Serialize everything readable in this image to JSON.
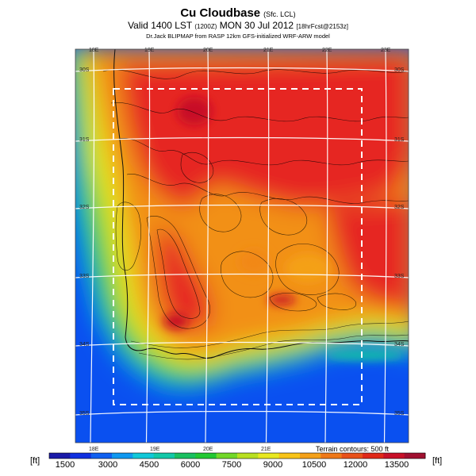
{
  "header": {
    "title": "Cu Cloudbase",
    "title_suffix": "(Sfc. LCL)",
    "valid_prefix": "Valid 1400 LST",
    "valid_code": "(1200Z)",
    "valid_date": "MON 30 Jul 2012",
    "valid_suffix": "[18hrFcst@2153z]",
    "credit": "Dr.Jack BLIPMAP from RASP 12km GFS-initialized WRF-ARW model"
  },
  "map": {
    "lon_labels_top": [
      "18E",
      "19E",
      "20E",
      "21E",
      "22E",
      "23E"
    ],
    "lon_labels_bottom": [
      "18E",
      "19E",
      "20E",
      "21E"
    ],
    "lat_labels_left": [
      "30S",
      "31S",
      "32S",
      "33S",
      "34S",
      "35S"
    ],
    "lat_labels_right": [
      "30S",
      "31S",
      "32S",
      "33S",
      "34S",
      "35S"
    ],
    "terrain_note": "Terrain contours: 500 ft"
  },
  "colorbar": {
    "unit_left": "[ft]",
    "unit_right": "[ft]",
    "tick_labels": [
      "1500",
      "3000",
      "4500",
      "6000",
      "7500",
      "9000",
      "10500",
      "12000",
      "13500"
    ],
    "colors": [
      "#1a1aa8",
      "#1030e0",
      "#1060f0",
      "#0f98f0",
      "#10c8d8",
      "#12c8a8",
      "#19c060",
      "#22c832",
      "#72d828",
      "#b8e020",
      "#e8e820",
      "#f8c418",
      "#f4a018",
      "#ef7818",
      "#e85018",
      "#e02818",
      "#c81028",
      "#a01030"
    ]
  },
  "style": {
    "ocean_color": "#0a50f0",
    "high_color": "#e62820",
    "box_color": "#ffffff"
  }
}
